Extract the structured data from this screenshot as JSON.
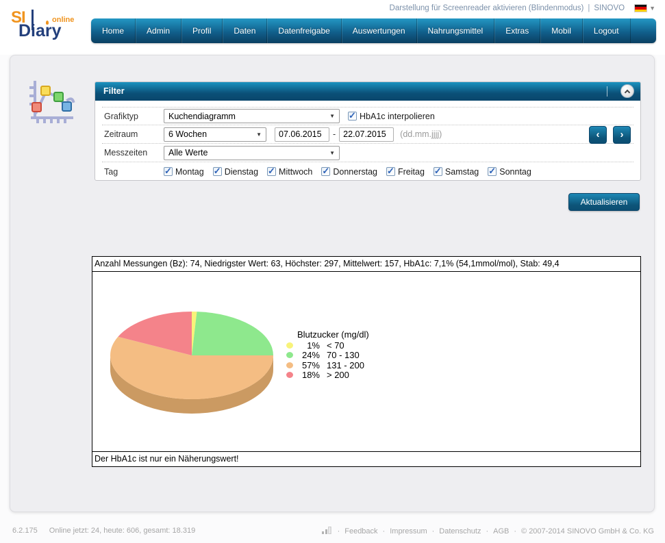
{
  "header": {
    "logo": {
      "si": "SI",
      "diary": "Diary",
      "online": "online"
    },
    "top_links": {
      "screenreader": "Darstellung für Screenreader aktivieren (Blindenmodus)",
      "separator": "|",
      "brand": "SINOVO"
    },
    "nav": [
      "Home",
      "Admin",
      "Profil",
      "Daten",
      "Datenfreigabe",
      "Auswertungen",
      "Nahrungsmittel",
      "Extras",
      "Mobil",
      "Logout"
    ]
  },
  "filter": {
    "title": "Filter",
    "rows": {
      "grafiktyp_label": "Grafiktyp",
      "grafiktyp_value": "Kuchendiagramm",
      "hba1c_label": "HbA1c interpolieren",
      "zeitraum_label": "Zeitraum",
      "zeitraum_value": "6 Wochen",
      "date_from": "07.06.2015",
      "date_sep": "-",
      "date_to": "22.07.2015",
      "date_format": "(dd.mm.jjjj)",
      "messzeiten_label": "Messzeiten",
      "messzeiten_value": "Alle Werte",
      "tag_label": "Tag",
      "days": [
        "Montag",
        "Dienstag",
        "Mittwoch",
        "Donnerstag",
        "Freitag",
        "Samstag",
        "Sonntag"
      ]
    },
    "update_button": "Aktualisieren"
  },
  "chart_data": {
    "type": "pie",
    "title": "Blutzucker (mg/dl)",
    "stats_line": "Anzahl Messungen (Bz): 74, Niedrigster Wert: 63, Höchster: 297, Mittelwert: 157, HbA1c: 7,1% (54,1mmol/mol), Stab: 49,4",
    "footnote": "Der HbA1c ist nur ein Näherungswert!",
    "style": "3d",
    "start_angle_deg": -90,
    "direction": "clockwise",
    "legend_position": "right",
    "side_color": "#cb9a62",
    "slices": [
      {
        "label": "< 70",
        "percent": 1,
        "color": "#f8f37a"
      },
      {
        "label": "70 - 130",
        "percent": 24,
        "color": "#8ee88d"
      },
      {
        "label": "131 - 200",
        "percent": 57,
        "color": "#f4bd83"
      },
      {
        "label": "> 200",
        "percent": 18,
        "color": "#f4838a"
      }
    ]
  },
  "footer": {
    "version": "6.2.175",
    "stats": "Online jetzt: 24, heute: 606, gesamt: 18.319",
    "links": [
      "Feedback",
      "Impressum",
      "Datenschutz",
      "AGB"
    ],
    "copyright": "© 2007-2014 SINOVO GmbH & Co. KG",
    "sep": "·"
  }
}
